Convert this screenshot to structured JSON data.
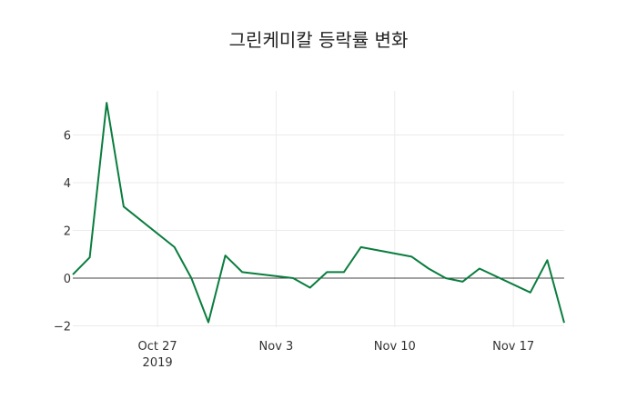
{
  "chart_data": {
    "type": "line",
    "title": "그린케미칼 등락률 변화",
    "xlabel": "",
    "ylabel": "",
    "x": [
      "2019-10-22",
      "2019-10-23",
      "2019-10-24",
      "2019-10-25",
      "2019-10-28",
      "2019-10-29",
      "2019-10-30",
      "2019-10-31",
      "2019-11-01",
      "2019-11-04",
      "2019-11-05",
      "2019-11-06",
      "2019-11-07",
      "2019-11-08",
      "2019-11-11",
      "2019-11-12",
      "2019-11-13",
      "2019-11-14",
      "2019-11-15",
      "2019-11-18",
      "2019-11-19",
      "2019-11-20"
    ],
    "series": [
      {
        "name": "등락률",
        "color": "#0a7d3e",
        "values": [
          0.15,
          0.87,
          7.35,
          3.0,
          1.3,
          0.0,
          -1.85,
          0.95,
          0.25,
          0.0,
          -0.4,
          0.25,
          0.25,
          1.3,
          0.9,
          0.4,
          0.0,
          -0.15,
          0.4,
          -0.6,
          0.75,
          -1.87
        ]
      }
    ],
    "xticks": [
      {
        "label": "Oct 27",
        "sub": "2019",
        "date": "2019-10-27"
      },
      {
        "label": "Nov 3",
        "date": "2019-11-03"
      },
      {
        "label": "Nov 10",
        "date": "2019-11-10"
      },
      {
        "label": "Nov 17",
        "date": "2019-11-17"
      }
    ],
    "yticks": [
      6,
      4,
      2,
      0,
      -2
    ],
    "ytick_labels": [
      "6",
      "4",
      "2",
      "0",
      "−2"
    ],
    "xlim": [
      "2019-10-22",
      "2019-11-20"
    ],
    "ylim": [
      -2.2,
      7.8
    ],
    "grid": true,
    "legend": false
  }
}
